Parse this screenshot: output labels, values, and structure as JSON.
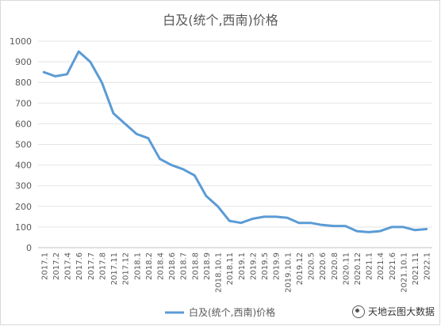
{
  "chart_data": {
    "type": "line",
    "title": "白及(统个,西南)价格",
    "ylim": [
      0,
      1000
    ],
    "yticks": [
      "0",
      "100",
      "200",
      "300",
      "400",
      "500",
      "600",
      "700",
      "800",
      "900",
      "1000"
    ],
    "categories": [
      "2017.1",
      "2017.2",
      "2017.4",
      "2017.6",
      "2017.7",
      "2017.8",
      "2017.11",
      "2017.12",
      "2018.1",
      "2018.2",
      "2018.4",
      "2018.6",
      "2018.7",
      "2018.8",
      "2018.9",
      "2018.10.1",
      "2018.11",
      "2019.1",
      "2019.2",
      "2019.5",
      "2019.9",
      "2019.10.1",
      "2019.12",
      "2020.5",
      "2020.6",
      "2020.8",
      "2020.11",
      "2020.12",
      "2021.1",
      "2021.4",
      "2021.6",
      "2021.10.1",
      "2021.11",
      "2022.1"
    ],
    "series": [
      {
        "name": "白及(统个,西南)价格",
        "color": "#5b9bd5",
        "values": [
          850,
          830,
          840,
          950,
          900,
          800,
          650,
          600,
          550,
          530,
          430,
          400,
          380,
          350,
          250,
          200,
          130,
          120,
          140,
          150,
          150,
          145,
          120,
          120,
          110,
          105,
          105,
          80,
          75,
          80,
          100,
          100,
          85,
          90
        ]
      }
    ],
    "legend": {
      "position": "bottom",
      "label": "白及(统个,西南)价格"
    },
    "grid": true
  },
  "watermark": {
    "text": "天地云图大数据",
    "icon": "wechat-icon"
  }
}
